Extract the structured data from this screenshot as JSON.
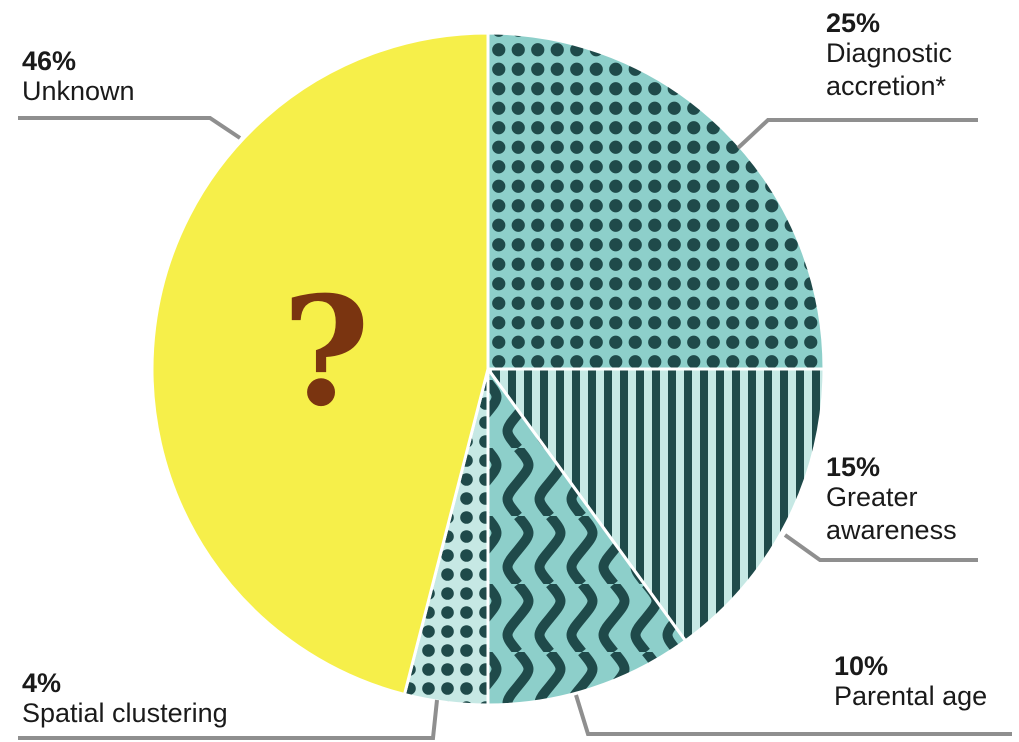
{
  "chart_data": {
    "type": "pie",
    "slices": [
      {
        "label": "Diagnostic accretion*",
        "value": 25,
        "value_label": "25%",
        "label_lines": [
          "Diagnostic",
          "accretion*"
        ],
        "pattern": "dots",
        "colors": {
          "base": "#8dcfca",
          "ink": "#1f4a4a"
        }
      },
      {
        "label": "Greater awareness",
        "value": 15,
        "value_label": "15%",
        "label_lines": [
          "Greater",
          "awareness"
        ],
        "pattern": "stripes",
        "colors": {
          "base": "#c6e8e4",
          "ink": "#1f4a4a"
        }
      },
      {
        "label": "Parental age",
        "value": 10,
        "value_label": "10%",
        "label_lines": [
          "Parental age"
        ],
        "pattern": "waves",
        "colors": {
          "base": "#8dcfca",
          "ink": "#1f4a4a"
        }
      },
      {
        "label": "Spatial clustering",
        "value": 4,
        "value_label": "4%",
        "label_lines": [
          "Spatial clustering"
        ],
        "pattern": "dots",
        "colors": {
          "base": "#c6e8e4",
          "ink": "#1f4a4a"
        }
      },
      {
        "label": "Unknown",
        "value": 46,
        "value_label": "46%",
        "label_lines": [
          "Unknown"
        ],
        "pattern": "solid",
        "colors": {
          "base": "#f6ef4a",
          "ink": "#f6ef4a"
        }
      }
    ],
    "center_symbol": "?",
    "center_symbol_color": "#7a3410",
    "leader_color": "#8f8f8f"
  }
}
